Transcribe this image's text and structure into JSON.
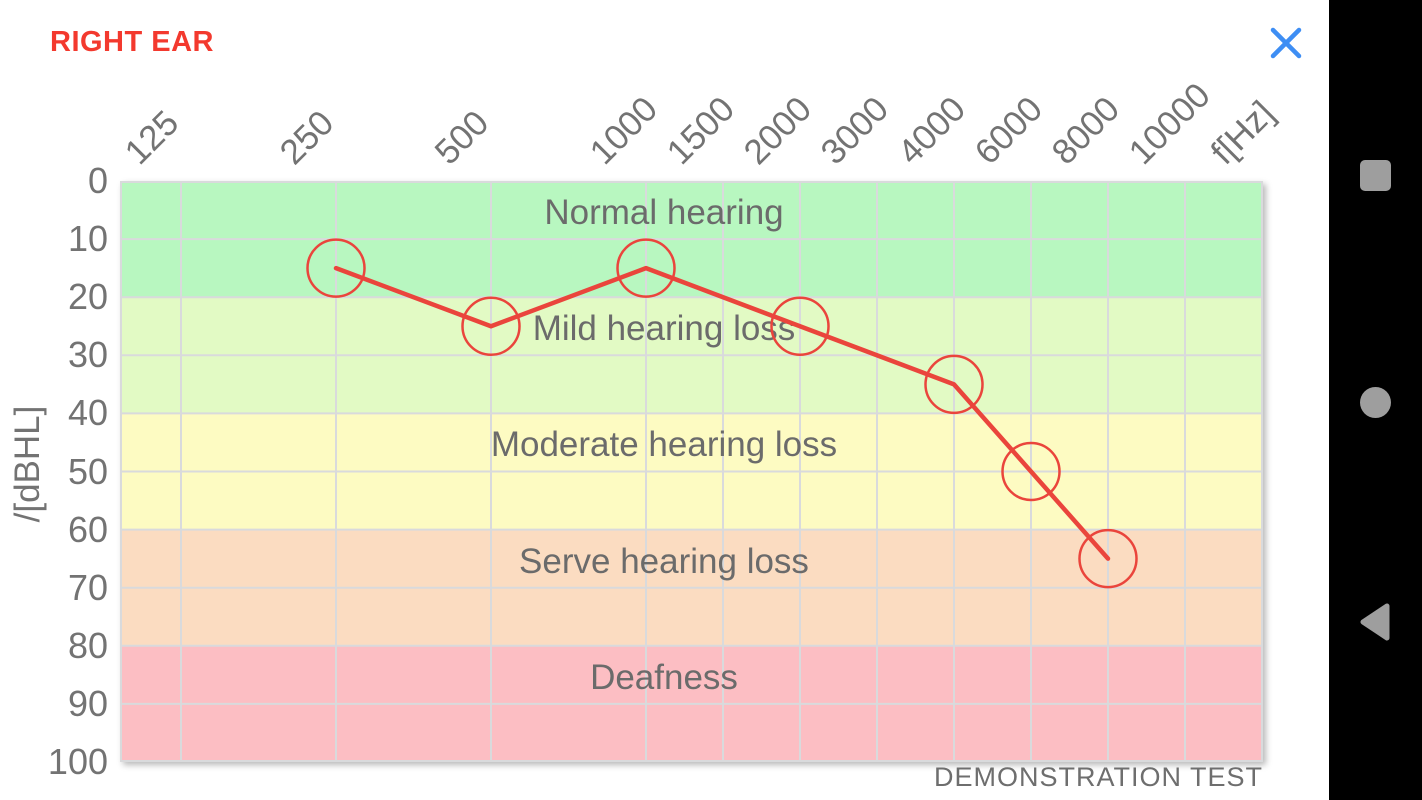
{
  "window": {
    "title": "RIGHT EAR",
    "close_label": "close"
  },
  "colors": {
    "title_red": "#f3392e",
    "series_red": "#ea453c",
    "close_blue": "#3e8ef4",
    "grid_line": "#d9dadc",
    "tick_text": "#737373",
    "band_text": "#6b6b6b",
    "nav_icon_gray": "#9e9e9e",
    "nav_bar_black": "#000000"
  },
  "chart_data": {
    "type": "line",
    "title": "RIGHT EAR",
    "x_unit_label": "f[Hz]",
    "ylabel": "/[dBHL]",
    "x_ticks": [
      125,
      250,
      500,
      1000,
      1500,
      2000,
      3000,
      4000,
      6000,
      8000,
      10000
    ],
    "y_ticks": [
      0,
      10,
      20,
      30,
      40,
      50,
      60,
      70,
      80,
      90,
      100
    ],
    "ylim": [
      0,
      100
    ],
    "y_axis_inverted": true,
    "x_scale": "octave-log then half-octave linear above 1000 Hz",
    "grid": true,
    "bands": [
      {
        "label": "Normal hearing",
        "from_db": 0,
        "to_db": 20,
        "color": "#b8f7c0"
      },
      {
        "label": "Mild hearing loss",
        "from_db": 20,
        "to_db": 40,
        "color": "#e2fac4"
      },
      {
        "label": "Moderate hearing loss",
        "from_db": 40,
        "to_db": 60,
        "color": "#fdfbc2"
      },
      {
        "label": "Serve hearing loss",
        "from_db": 60,
        "to_db": 80,
        "color": "#fbdcc1"
      },
      {
        "label": "Deafness",
        "from_db": 80,
        "to_db": 100,
        "color": "#fcbec3"
      }
    ],
    "series": [
      {
        "name": "right-ear-threshold",
        "color": "#ea453c",
        "marker": "open-circle",
        "points": [
          {
            "freq_hz": 250,
            "db_hl": 15
          },
          {
            "freq_hz": 500,
            "db_hl": 25
          },
          {
            "freq_hz": 1000,
            "db_hl": 15
          },
          {
            "freq_hz": 2000,
            "db_hl": 25
          },
          {
            "freq_hz": 4000,
            "db_hl": 35
          },
          {
            "freq_hz": 6000,
            "db_hl": 50
          },
          {
            "freq_hz": 8000,
            "db_hl": 65
          }
        ]
      }
    ],
    "watermark": "DEMONSTRATION TEST"
  },
  "nav_bar": {
    "icons": [
      "recents-square-icon",
      "home-circle-icon",
      "back-triangle-icon"
    ]
  }
}
